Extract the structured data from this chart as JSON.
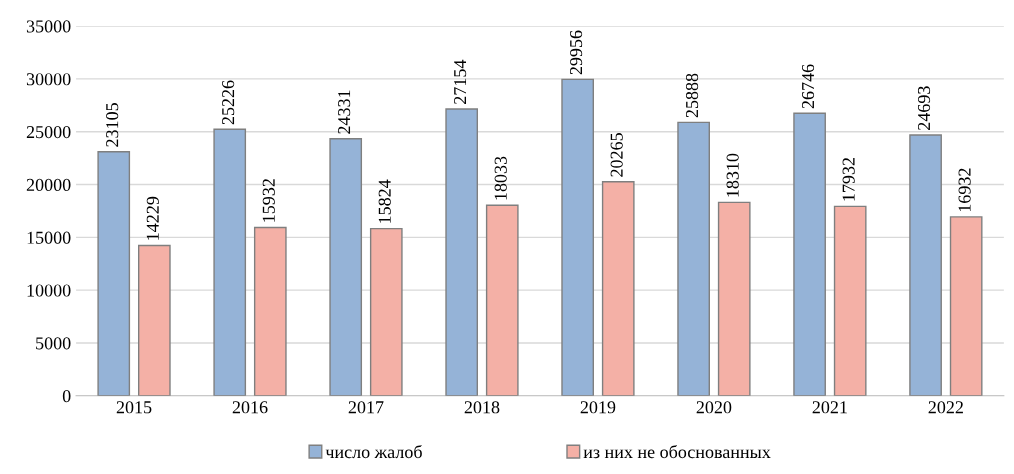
{
  "chart_data": {
    "type": "bar",
    "categories": [
      "2015",
      "2016",
      "2017",
      "2018",
      "2019",
      "2020",
      "2021",
      "2022"
    ],
    "series": [
      {
        "name": "число жалоб",
        "color": "#95b3d7",
        "values": [
          23105,
          25226,
          24331,
          27154,
          29956,
          25888,
          26746,
          24693
        ]
      },
      {
        "name": "из них не обоснованных",
        "color": "#f4b0a6",
        "values": [
          14229,
          15932,
          15824,
          18033,
          20265,
          18310,
          17932,
          16932
        ]
      }
    ],
    "ylim": [
      0,
      35000
    ],
    "yticks": [
      0,
      5000,
      10000,
      15000,
      20000,
      25000,
      30000,
      35000
    ],
    "grid": "y",
    "legend": "bottom",
    "data_labels": true
  }
}
